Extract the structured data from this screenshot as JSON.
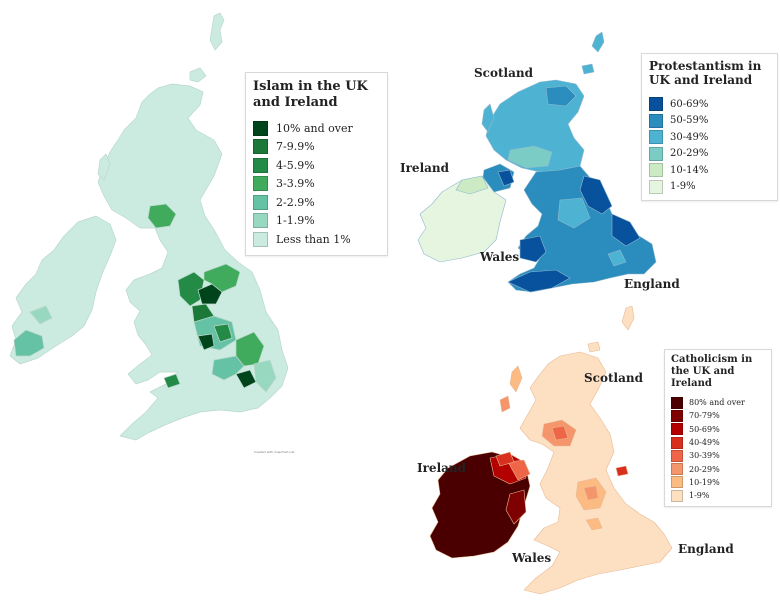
{
  "islam_map": {
    "legend": {
      "title": "Islam in the UK and Ireland",
      "items": [
        {
          "label": "10% and over",
          "color": "#00441b"
        },
        {
          "label": "7-9.9%",
          "color": "#1b7837"
        },
        {
          "label": "4-5.9%",
          "color": "#238b45"
        },
        {
          "label": "3-3.9%",
          "color": "#41ab5d"
        },
        {
          "label": "2-2.9%",
          "color": "#66c2a4"
        },
        {
          "label": "1-1.9%",
          "color": "#99d8c0"
        },
        {
          "label": "Less than 1%",
          "color": "#ccebe0"
        }
      ]
    },
    "credit": "Created with mapchart.net"
  },
  "protestantism_map": {
    "legend": {
      "title": "Protestantism in UK and Ireland",
      "items": [
        {
          "label": "60-69%",
          "color": "#08519c"
        },
        {
          "label": "50-59%",
          "color": "#2b8cbe"
        },
        {
          "label": "30-49%",
          "color": "#4eb3d3"
        },
        {
          "label": "20-29%",
          "color": "#7bccc4"
        },
        {
          "label": "10-14%",
          "color": "#ccebc5"
        },
        {
          "label": "1-9%",
          "color": "#e5f5e0"
        }
      ]
    },
    "labels": {
      "scotland": "Scotland",
      "ireland": "Ireland",
      "wales": "Wales",
      "england": "England"
    }
  },
  "catholicism_map": {
    "legend": {
      "title": "Catholicism in the UK and Ireland",
      "items": [
        {
          "label": "80% and over",
          "color": "#4a0000"
        },
        {
          "label": "70-79%",
          "color": "#7f0000"
        },
        {
          "label": "50-69%",
          "color": "#b30000"
        },
        {
          "label": "40-49%",
          "color": "#d7301f"
        },
        {
          "label": "30-39%",
          "color": "#ef6548"
        },
        {
          "label": "20-29%",
          "color": "#f4956b"
        },
        {
          "label": "10-19%",
          "color": "#fdbb84"
        },
        {
          "label": "1-9%",
          "color": "#fde0c2"
        }
      ]
    },
    "labels": {
      "scotland": "Scotland",
      "ireland": "Ireland",
      "wales": "Wales",
      "england": "England"
    }
  }
}
